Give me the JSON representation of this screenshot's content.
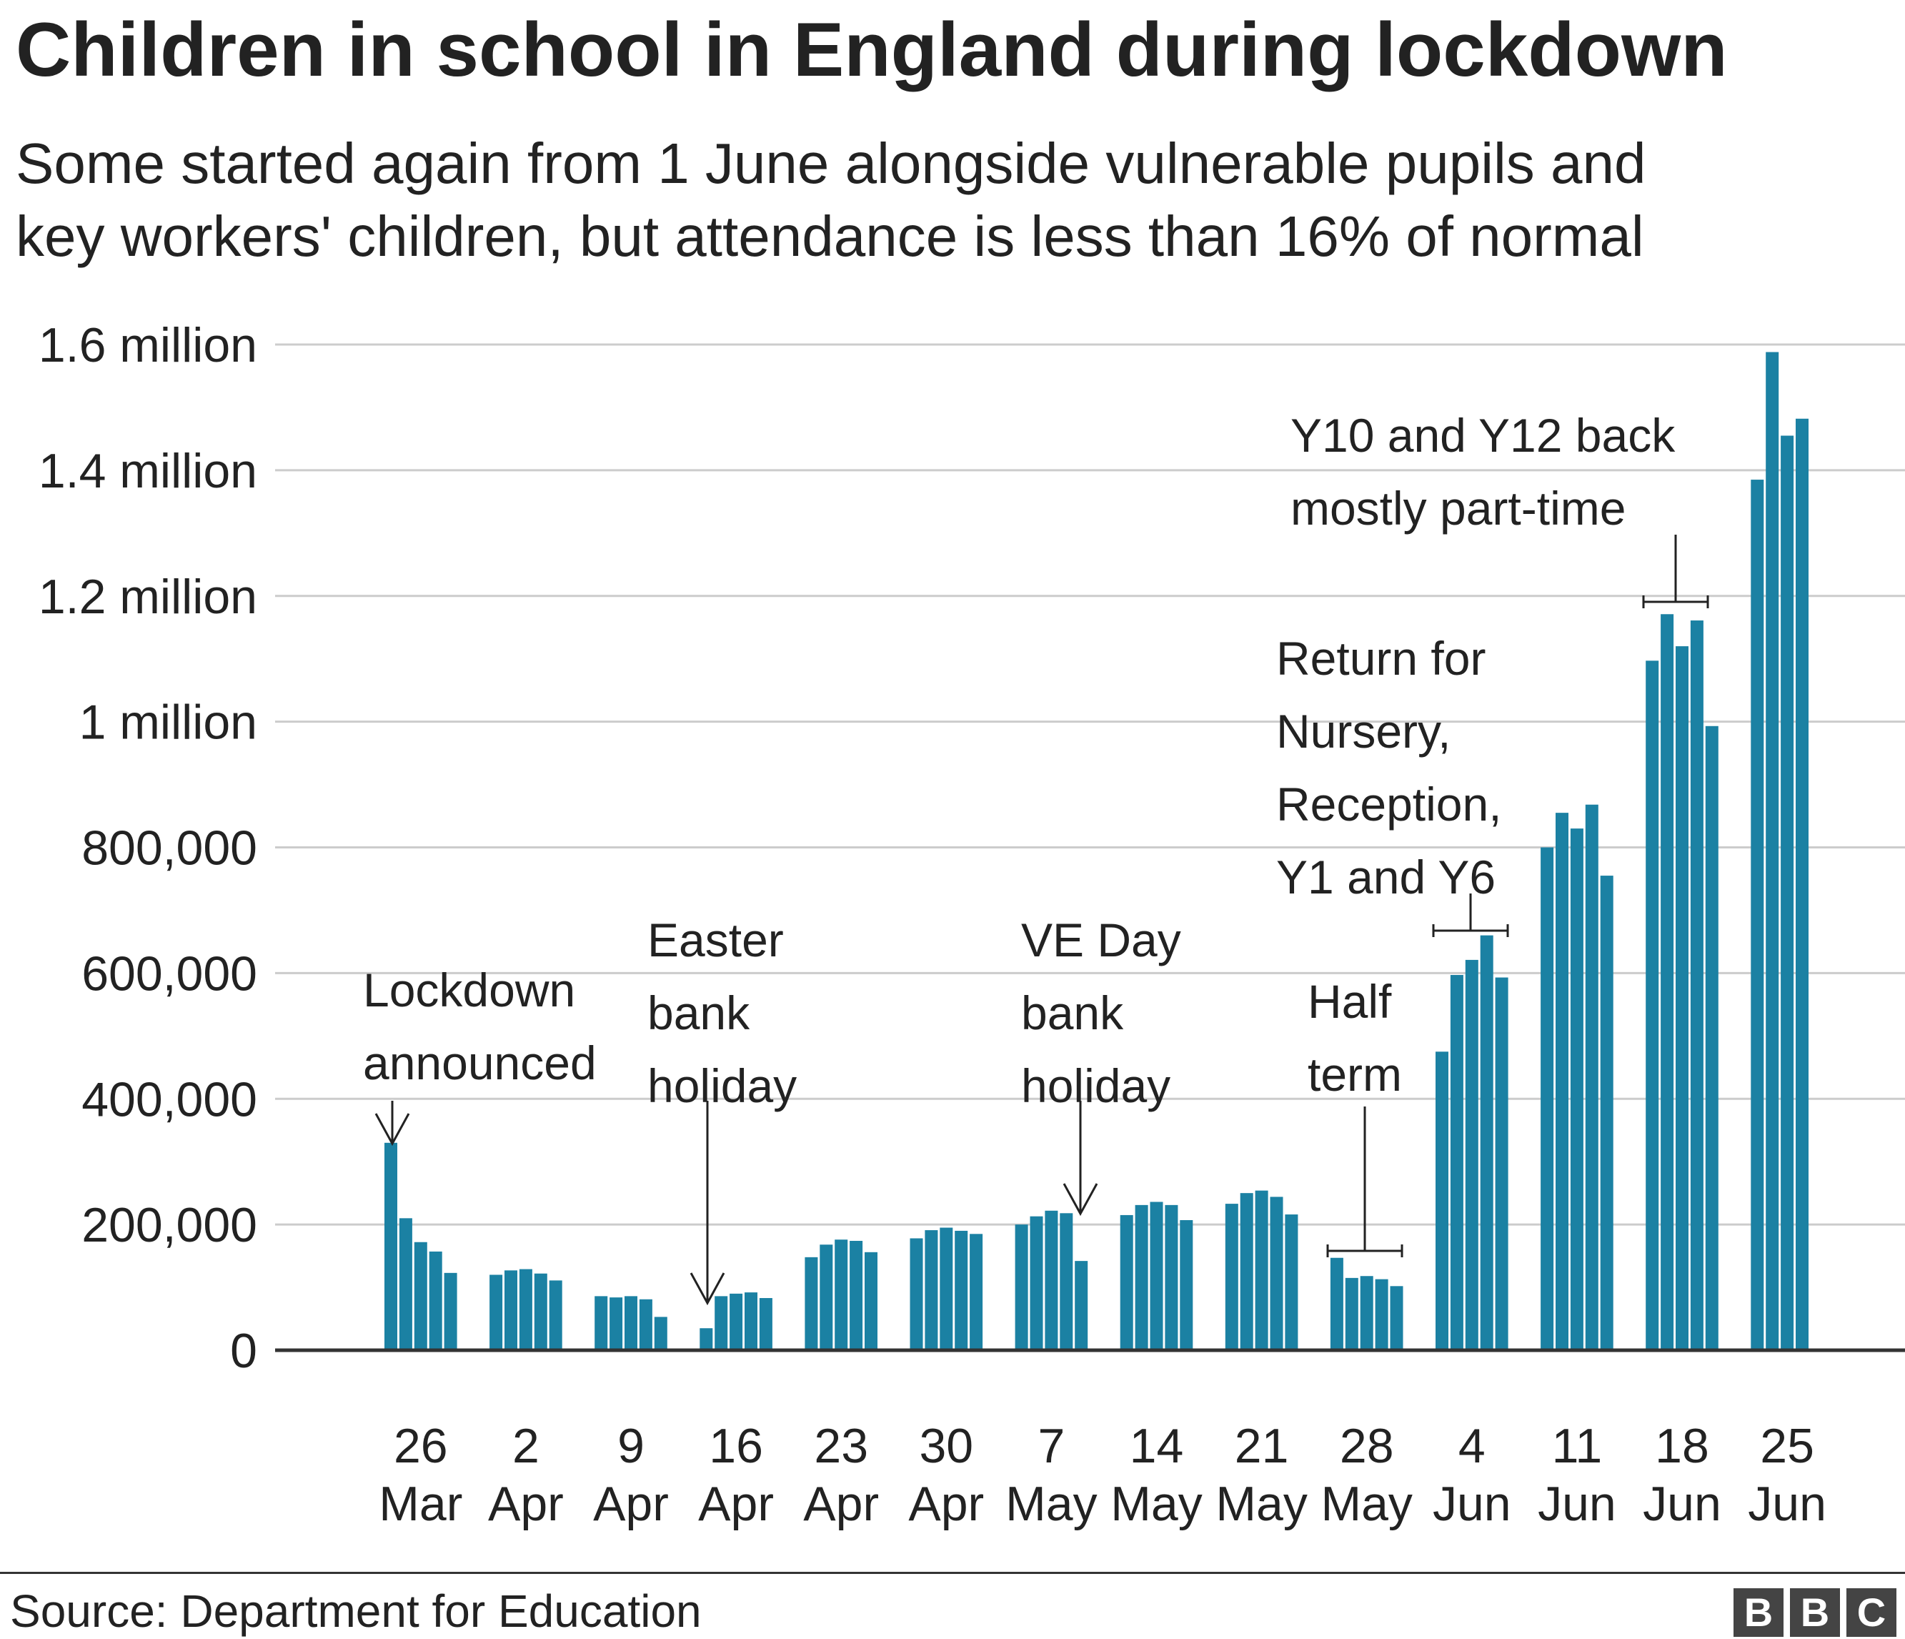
{
  "title": "Children in school in England during lockdown",
  "subtitle_lines": [
    "Some started again from 1 June alongside vulnerable pupils and",
    "key workers' children, but attendance is less than 16% of normal"
  ],
  "source": "Source: Department for Education",
  "logo": [
    "B",
    "B",
    "C"
  ],
  "colors": {
    "bar": "#1b81a3",
    "grid": "#cccccc",
    "axis": "#333333",
    "text": "#222222"
  },
  "chart_data": {
    "type": "bar",
    "title": "Children in school in England during lockdown",
    "xlabel": "",
    "ylabel": "",
    "ylim": [
      0,
      1600000
    ],
    "y_ticks": [
      0,
      200000,
      400000,
      600000,
      800000,
      1000000,
      1200000,
      1400000,
      1600000
    ],
    "y_tick_labels": [
      "0",
      "200,000",
      "400,000",
      "600,000",
      "800,000",
      "1 million",
      "1.2 million",
      "1.4 million",
      "1.6 million"
    ],
    "grid": true,
    "weeks": [
      {
        "label": [
          "26",
          "Mar"
        ],
        "values": [
          330000,
          210000,
          172000,
          157000,
          123000
        ]
      },
      {
        "label": [
          "2",
          "Apr"
        ],
        "values": [
          120000,
          127000,
          129000,
          122000,
          111000
        ]
      },
      {
        "label": [
          "9",
          "Apr"
        ],
        "values": [
          86000,
          84000,
          86000,
          81000,
          53000
        ]
      },
      {
        "label": [
          "16",
          "Apr"
        ],
        "values": [
          35000,
          86000,
          90000,
          92000,
          83000
        ]
      },
      {
        "label": [
          "23",
          "Apr"
        ],
        "values": [
          148000,
          168000,
          176000,
          174000,
          156000
        ]
      },
      {
        "label": [
          "30",
          "Apr"
        ],
        "values": [
          178000,
          191000,
          195000,
          190000,
          185000
        ]
      },
      {
        "label": [
          "7",
          "May"
        ],
        "values": [
          200000,
          213000,
          222000,
          218000,
          142000
        ]
      },
      {
        "label": [
          "14",
          "May"
        ],
        "values": [
          215000,
          231000,
          236000,
          231000,
          207000
        ]
      },
      {
        "label": [
          "21",
          "May"
        ],
        "values": [
          233000,
          250000,
          254000,
          244000,
          216000
        ]
      },
      {
        "label": [
          "28",
          "May"
        ],
        "values": [
          147000,
          115000,
          118000,
          113000,
          102000
        ]
      },
      {
        "label": [
          "4",
          "Jun"
        ],
        "values": [
          475000,
          597000,
          621000,
          660000,
          593000
        ]
      },
      {
        "label": [
          "11",
          "Jun"
        ],
        "values": [
          800000,
          855000,
          830000,
          868000,
          755000
        ]
      },
      {
        "label": [
          "18",
          "Jun"
        ],
        "values": [
          1097000,
          1171000,
          1120000,
          1161000,
          993000
        ]
      },
      {
        "label": [
          "25",
          "Jun"
        ],
        "values": [
          1385000,
          1588000,
          1455000,
          1482000
        ]
      }
    ],
    "annotations": [
      {
        "lines": [
          "Lockdown",
          "announced"
        ]
      },
      {
        "lines": [
          "Easter",
          "bank",
          "holiday"
        ]
      },
      {
        "lines": [
          "VE Day",
          "bank",
          "holiday"
        ]
      },
      {
        "lines": [
          "Half",
          "term"
        ]
      },
      {
        "lines": [
          "Return for",
          "Nursery,",
          "Reception,",
          "Y1 and Y6"
        ]
      },
      {
        "lines": [
          "Y10 and Y12 back",
          "mostly part-time"
        ]
      }
    ]
  }
}
